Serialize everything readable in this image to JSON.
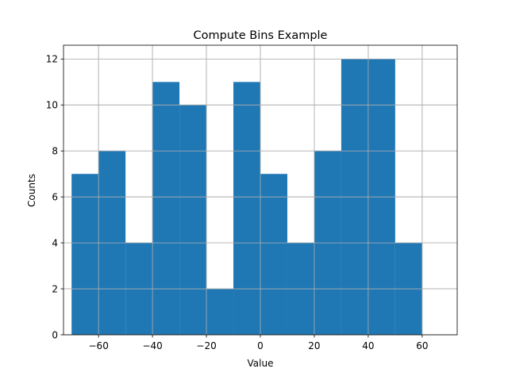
{
  "chart_data": {
    "type": "bar",
    "title": "Compute Bins Example",
    "xlabel": "Value",
    "ylabel": "Counts",
    "bin_edges": [
      -70,
      -60,
      -50,
      -40,
      -30,
      -20,
      -10,
      0,
      10,
      20,
      30,
      40,
      50,
      60
    ],
    "values": [
      7,
      8,
      4,
      11,
      10,
      2,
      11,
      7,
      4,
      8,
      12,
      12,
      4
    ],
    "xlim": [
      -73,
      73
    ],
    "ylim": [
      0,
      12.6
    ],
    "xticks": [
      -60,
      -40,
      -20,
      0,
      20,
      40,
      60
    ],
    "xtick_labels": [
      "−60",
      "−40",
      "−20",
      "0",
      "20",
      "40",
      "60"
    ],
    "yticks": [
      0,
      2,
      4,
      6,
      8,
      10,
      12
    ],
    "ytick_labels": [
      "0",
      "2",
      "4",
      "6",
      "8",
      "10",
      "12"
    ],
    "grid": true,
    "bar_color": "#1f77b4"
  }
}
